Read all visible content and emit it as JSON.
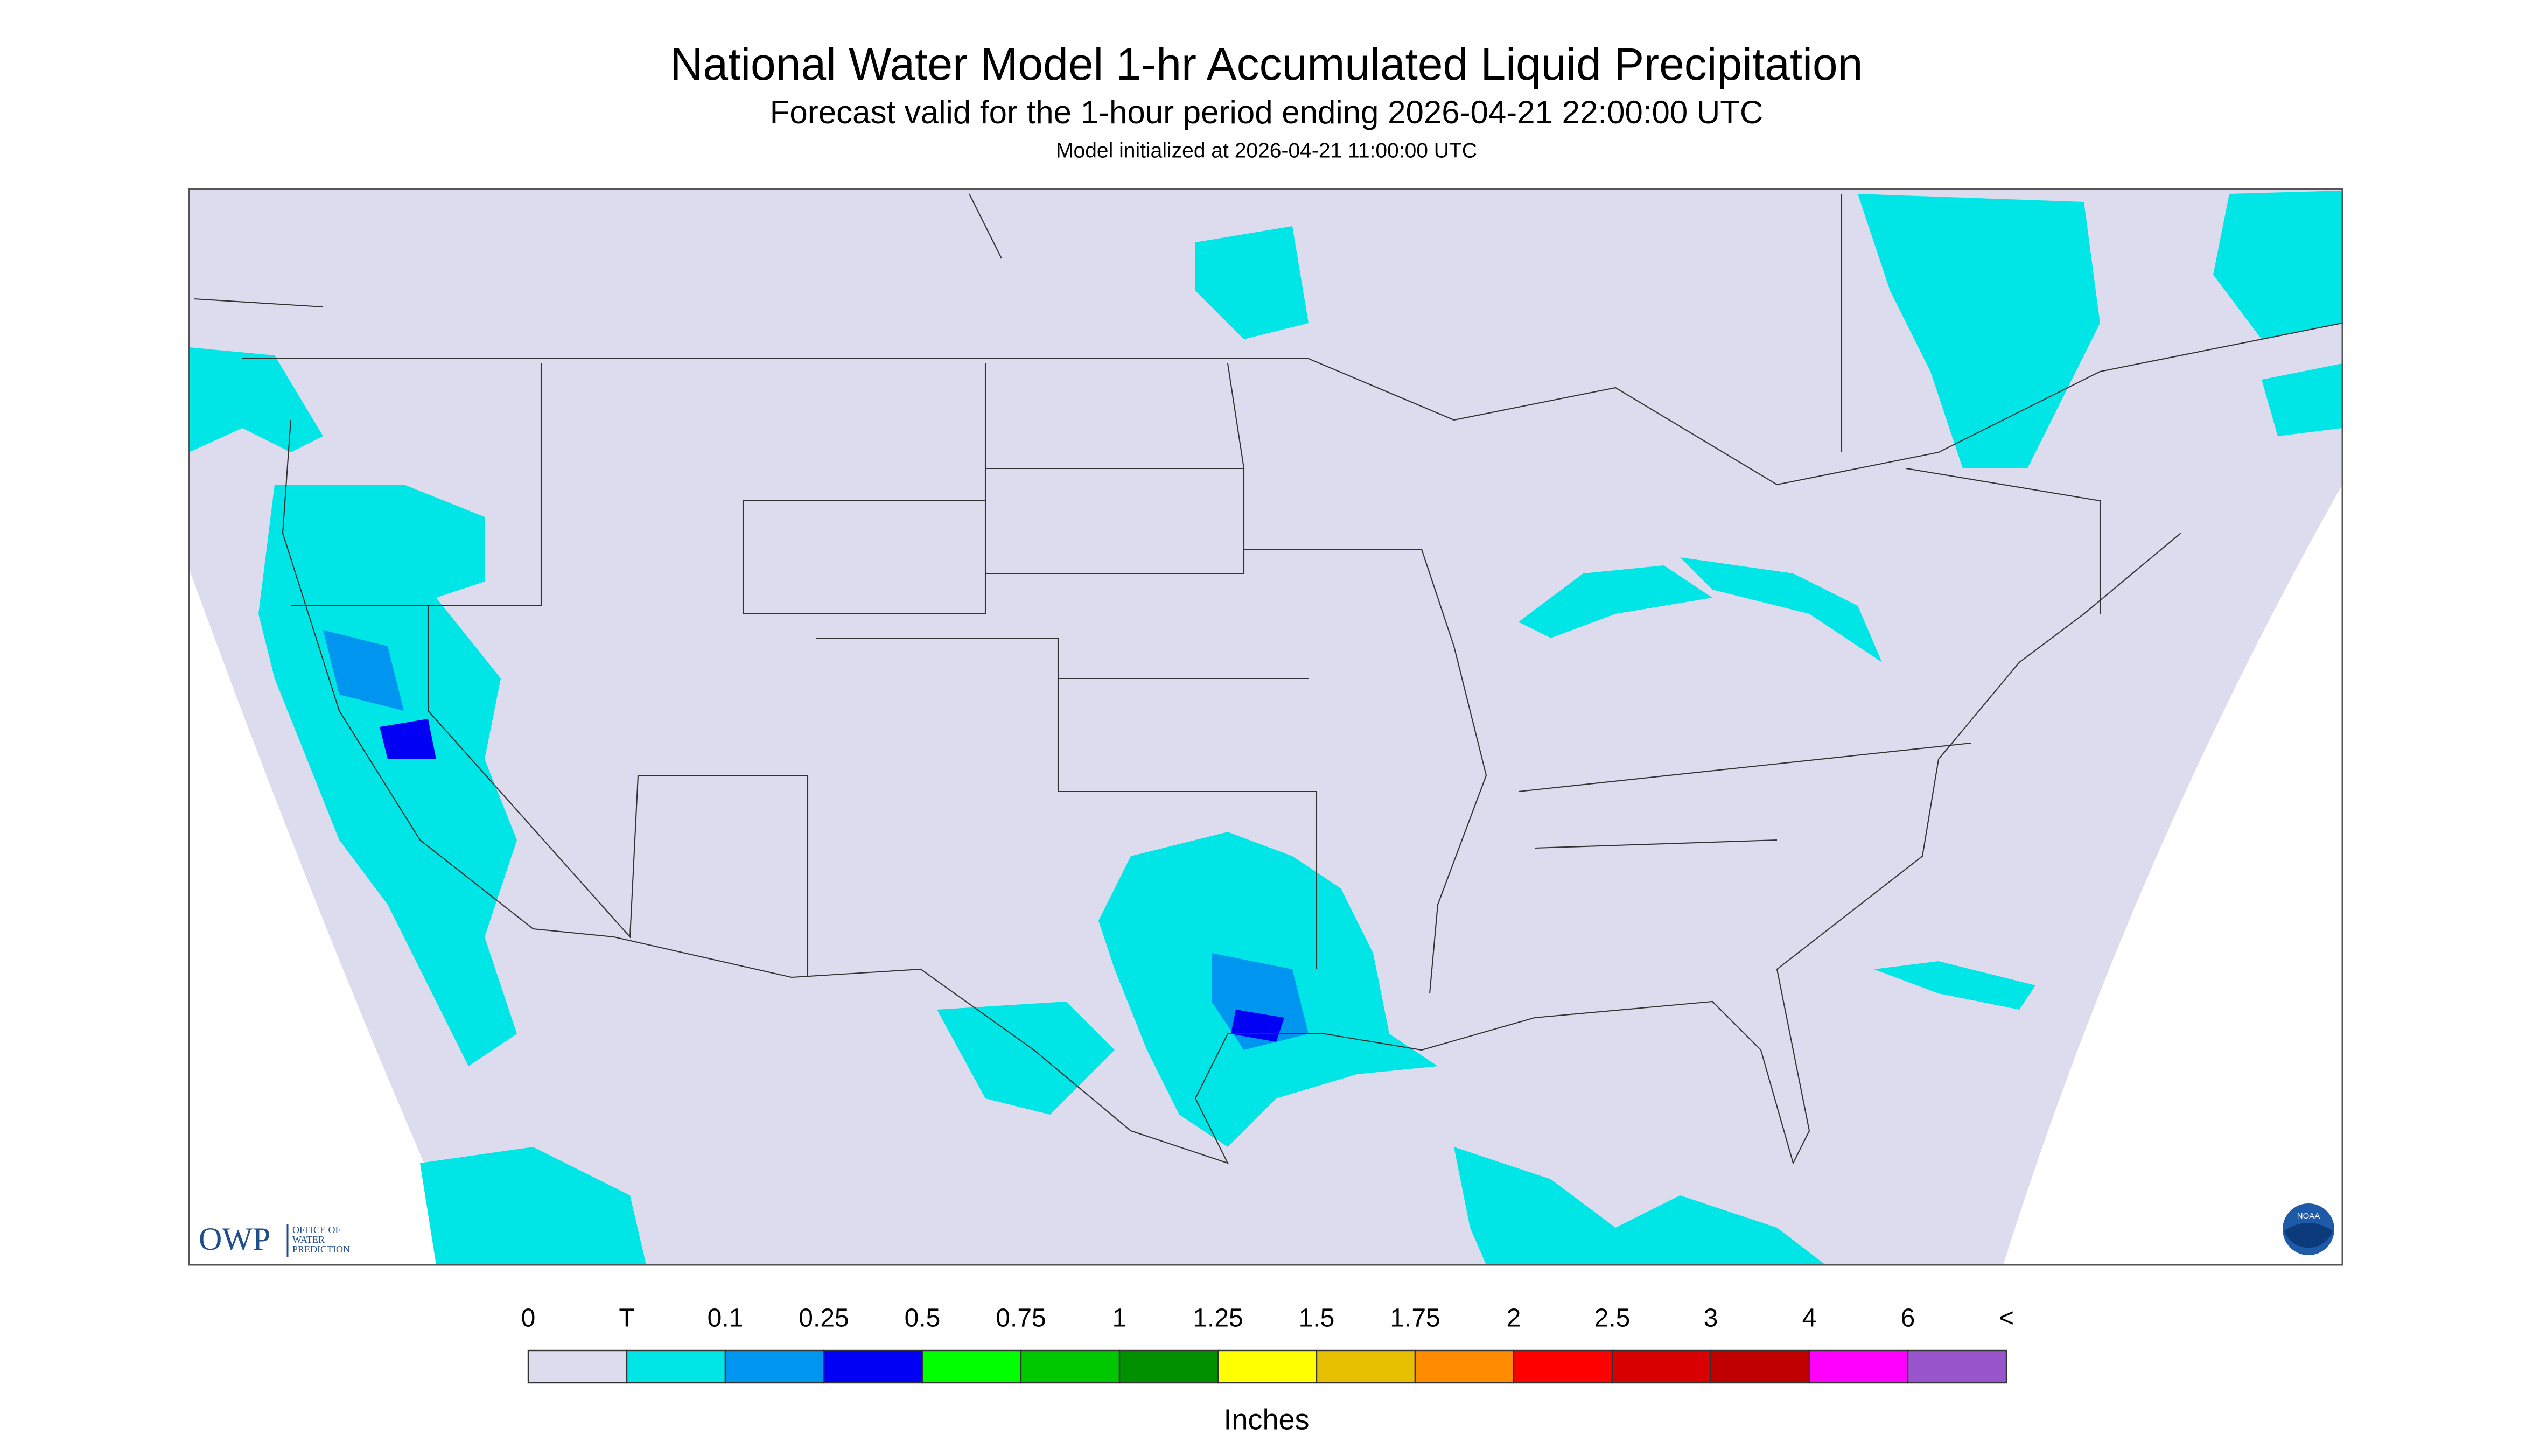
{
  "header": {
    "title": "National Water Model 1-hr Accumulated Liquid Precipitation",
    "subtitle": "Forecast valid for the 1-hour period ending 2026-04-21 22:00:00 UTC",
    "note": "Model initialized at 2026-04-21 11:00:00 UTC"
  },
  "legend": {
    "labels": [
      "0",
      "T",
      "0.1",
      "0.25",
      "0.5",
      "0.75",
      "1",
      "1.25",
      "1.5",
      "1.75",
      "2",
      "2.5",
      "3",
      "4",
      "6",
      "<"
    ],
    "colors": [
      "#dcdcee",
      "#00e6e6",
      "#0096f0",
      "#0000f5",
      "#00ff00",
      "#00c800",
      "#009000",
      "#ffff00",
      "#e6c000",
      "#ff8c00",
      "#ff0000",
      "#d80000",
      "#c00000",
      "#ff00ff",
      "#9955cc"
    ],
    "unit": "Inches"
  },
  "logo": {
    "name": "OWP",
    "lines": [
      "OFFICE OF",
      "WATER",
      "PREDICTION"
    ],
    "noaa": "NOAA"
  }
}
